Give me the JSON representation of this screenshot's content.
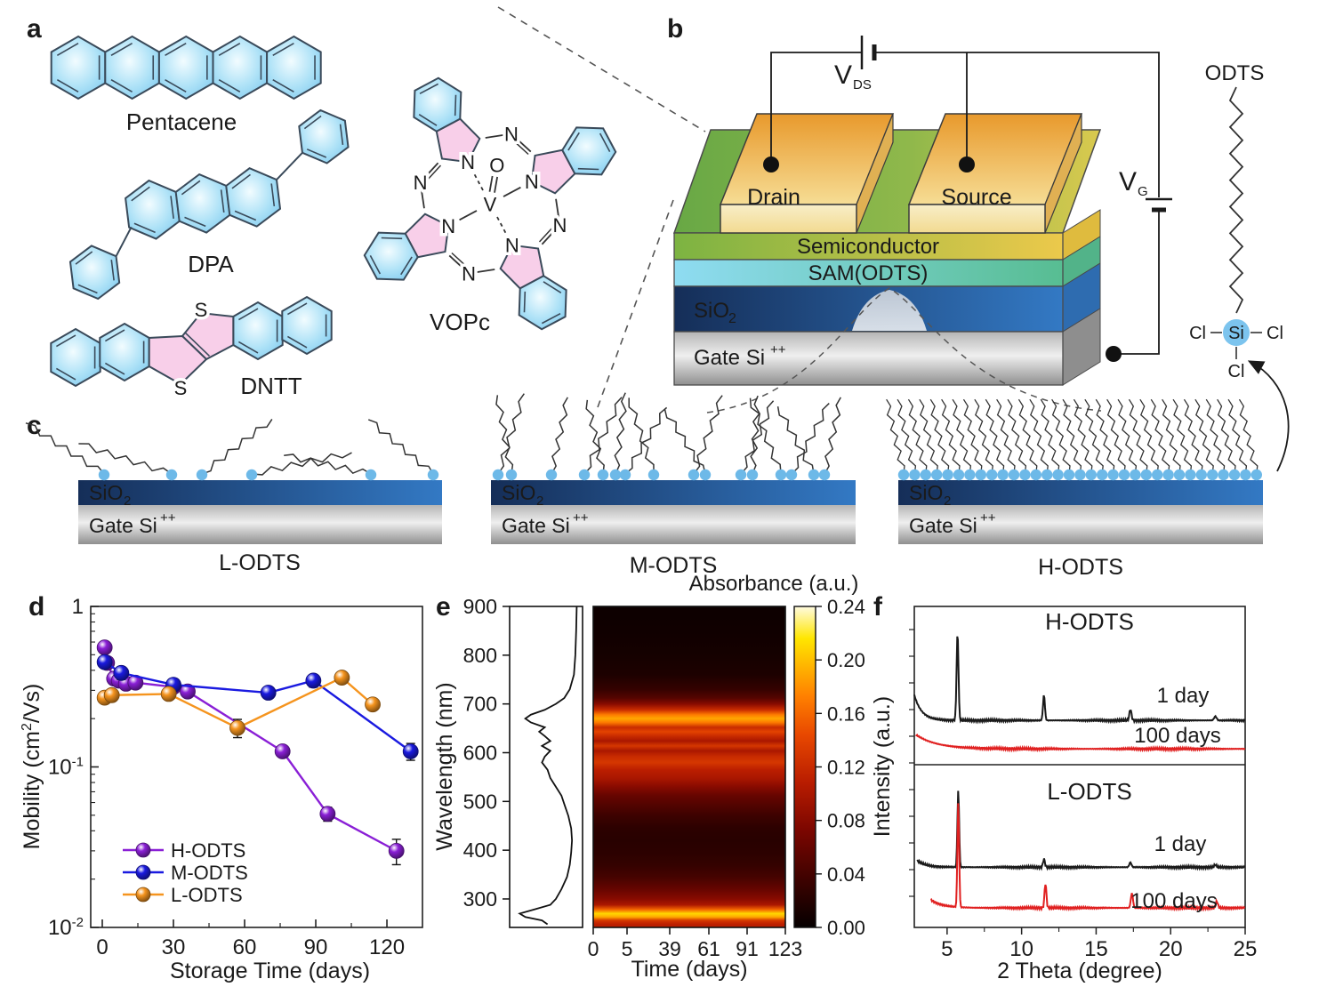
{
  "figure": {
    "background": "#ffffff"
  },
  "panel_a": {
    "label": "a",
    "molecule_labels": {
      "pentacene": "Pentacene",
      "dpa": "DPA",
      "dntt": "DNTT",
      "vopc": "VOPc"
    },
    "atoms": {
      "sulfur": "S",
      "nitrogen": "N",
      "oxygen": "O",
      "vanadium": "V"
    }
  },
  "panel_b": {
    "label": "b",
    "electrodes": {
      "drain": "Drain",
      "source": "Source"
    },
    "layers": {
      "semiconductor": "Semiconductor",
      "sam": "SAM(ODTS)",
      "sio2_main": "SiO",
      "sio2_sub": "2",
      "gate_main": "Gate Si",
      "gate_sup": "++"
    },
    "circuit": {
      "v": "V",
      "vds_sub": "DS",
      "vg_sub": "G"
    },
    "molecule": {
      "name": "ODTS",
      "si": "Si",
      "cl": "Cl"
    }
  },
  "panel_c": {
    "label": "c",
    "sio2_main": "SiO",
    "sio2_sub": "2",
    "gate_main": "Gate Si",
    "gate_sup": "++",
    "variants": [
      "L-ODTS",
      "M-ODTS",
      "H-ODTS"
    ]
  },
  "panel_d_label": "d",
  "panel_e_label": "e",
  "panel_f_label": "f",
  "chart_data": [
    {
      "id": "mobility_vs_storage",
      "panel": "d",
      "type": "line",
      "xlabel": "Storage Time (days)",
      "ylabel_parts": [
        "Mobility (cm",
        "2",
        "/Vs)"
      ],
      "xlim": [
        -4,
        133
      ],
      "xticks": [
        0,
        30,
        60,
        90,
        120
      ],
      "xminor": [
        15,
        45,
        75,
        105
      ],
      "yscale": "log",
      "ylim": [
        0.01,
        1
      ],
      "yticks": [
        {
          "v": 1,
          "main": "1",
          "sup": ""
        },
        {
          "v": 0.1,
          "main": "10",
          "sup": "-1"
        },
        {
          "v": 0.01,
          "main": "10",
          "sup": "-2"
        }
      ],
      "legend_position": "lower-left",
      "grid": false,
      "series": [
        {
          "name": "H-ODTS",
          "color": "#8a1fd6",
          "x": [
            1,
            2,
            5,
            7,
            10,
            14,
            30,
            36,
            76,
            95,
            124
          ],
          "y": [
            0.555,
            0.445,
            0.355,
            0.345,
            0.33,
            0.335,
            0.315,
            0.295,
            0.125,
            0.051,
            0.03
          ],
          "yerr_rel": [
            0.05,
            0.05,
            0.05,
            0.04,
            0.04,
            0.04,
            0.04,
            0.04,
            0.05,
            0.1,
            0.18
          ]
        },
        {
          "name": "M-ODTS",
          "color": "#1a1ae0",
          "x": [
            1,
            8,
            30,
            70,
            89,
            130
          ],
          "y": [
            0.45,
            0.385,
            0.325,
            0.29,
            0.345,
            0.125
          ],
          "yerr_rel": [
            0.05,
            0.09,
            0.05,
            0.05,
            0.09,
            0.12
          ]
        },
        {
          "name": "L-ODTS",
          "color": "#f5941e",
          "x": [
            1,
            4,
            28,
            57,
            101,
            114
          ],
          "y": [
            0.27,
            0.28,
            0.285,
            0.175,
            0.36,
            0.245
          ],
          "yerr_rel": [
            0.07,
            0.05,
            0.05,
            0.13,
            0.04,
            0.05
          ]
        }
      ]
    },
    {
      "id": "absorbance_map",
      "panel": "e",
      "type": "heatmap",
      "xlabel": "Time (days)",
      "ylabel": "Wavelength (nm)",
      "colorbar_label": "Absorbance (a.u.)",
      "xticks": [
        0,
        5,
        39,
        61,
        91,
        123
      ],
      "yticks": [
        900,
        800,
        700,
        600,
        500,
        400,
        300
      ],
      "ylim": [
        244,
        900
      ],
      "colorbar_ticks": [
        "0.24",
        "0.20",
        "0.16",
        "0.12",
        "0.08",
        "0.04",
        "0.00"
      ],
      "colorbar_range": [
        0,
        0.24
      ],
      "colormap": [
        [
          0,
          "#050000"
        ],
        [
          0.14,
          "#3a0200"
        ],
        [
          0.3,
          "#7a0600"
        ],
        [
          0.45,
          "#b81c00"
        ],
        [
          0.6,
          "#e84800"
        ],
        [
          0.72,
          "#ff8000"
        ],
        [
          0.82,
          "#ffb800"
        ],
        [
          0.9,
          "#ffe600"
        ],
        [
          1,
          "#fffbe0"
        ]
      ],
      "spectral_profile": [
        [
          900,
          0.005
        ],
        [
          850,
          0.007
        ],
        [
          800,
          0.01
        ],
        [
          760,
          0.015
        ],
        [
          730,
          0.03
        ],
        [
          712,
          0.05
        ],
        [
          700,
          0.08
        ],
        [
          688,
          0.12
        ],
        [
          678,
          0.17
        ],
        [
          670,
          0.19
        ],
        [
          662,
          0.17
        ],
        [
          652,
          0.12
        ],
        [
          643,
          0.14
        ],
        [
          634,
          0.12
        ],
        [
          624,
          0.1
        ],
        [
          614,
          0.13
        ],
        [
          604,
          0.1
        ],
        [
          592,
          0.12
        ],
        [
          580,
          0.13
        ],
        [
          565,
          0.11
        ],
        [
          548,
          0.1
        ],
        [
          530,
          0.08
        ],
        [
          512,
          0.06
        ],
        [
          495,
          0.05
        ],
        [
          470,
          0.035
        ],
        [
          445,
          0.025
        ],
        [
          420,
          0.022
        ],
        [
          395,
          0.025
        ],
        [
          370,
          0.03
        ],
        [
          345,
          0.04
        ],
        [
          320,
          0.06
        ],
        [
          300,
          0.08
        ],
        [
          288,
          0.1
        ],
        [
          278,
          0.16
        ],
        [
          270,
          0.21
        ],
        [
          263,
          0.19
        ],
        [
          256,
          0.13
        ],
        [
          248,
          0.11
        ]
      ]
    },
    {
      "id": "xrd",
      "panel": "f",
      "type": "line",
      "xlabel": "2 Theta (degree)",
      "ylabel": "Intensity (a.u.)",
      "xlim": [
        2.8,
        25
      ],
      "xticks": [
        5,
        10,
        15,
        20,
        25
      ],
      "subpanels": [
        {
          "title": "H-ODTS",
          "curves": [
            {
              "name": "1 day",
              "color": "black",
              "baseline": 0.28,
              "left_rise": [
                0.16,
                0.5
              ],
              "x_start": 2.8,
              "peaks": [
                [
                  5.7,
                  0.55,
                  0.09
                ],
                [
                  11.5,
                  0.16,
                  0.09
                ],
                [
                  17.3,
                  0.07,
                  0.1
                ],
                [
                  23.0,
                  0.025,
                  0.12
                ]
              ]
            },
            {
              "name": "100 days",
              "color": "red",
              "baseline": 0.1,
              "left_rise": [
                0.09,
                1.4
              ],
              "x_start": 2.9,
              "peaks": []
            }
          ]
        },
        {
          "title": "L-ODTS",
          "curves": [
            {
              "name": "1 day",
              "color": "black",
              "baseline": 0.37,
              "left_rise": [
                0.04,
                0.6
              ],
              "x_start": 3.0,
              "peaks": [
                [
                  5.75,
                  0.47,
                  0.08
                ],
                [
                  11.5,
                  0.05,
                  0.09
                ],
                [
                  17.3,
                  0.03,
                  0.1
                ],
                [
                  23.0,
                  0.015,
                  0.1
                ]
              ]
            },
            {
              "name": "100 days",
              "color": "red",
              "baseline": 0.12,
              "left_rise": [
                0.05,
                0.8
              ],
              "x_start": 3.9,
              "peaks": [
                [
                  5.75,
                  0.64,
                  0.08
                ],
                [
                  11.6,
                  0.15,
                  0.09
                ],
                [
                  17.4,
                  0.09,
                  0.1
                ],
                [
                  23.1,
                  0.04,
                  0.1
                ]
              ]
            }
          ]
        }
      ]
    }
  ]
}
